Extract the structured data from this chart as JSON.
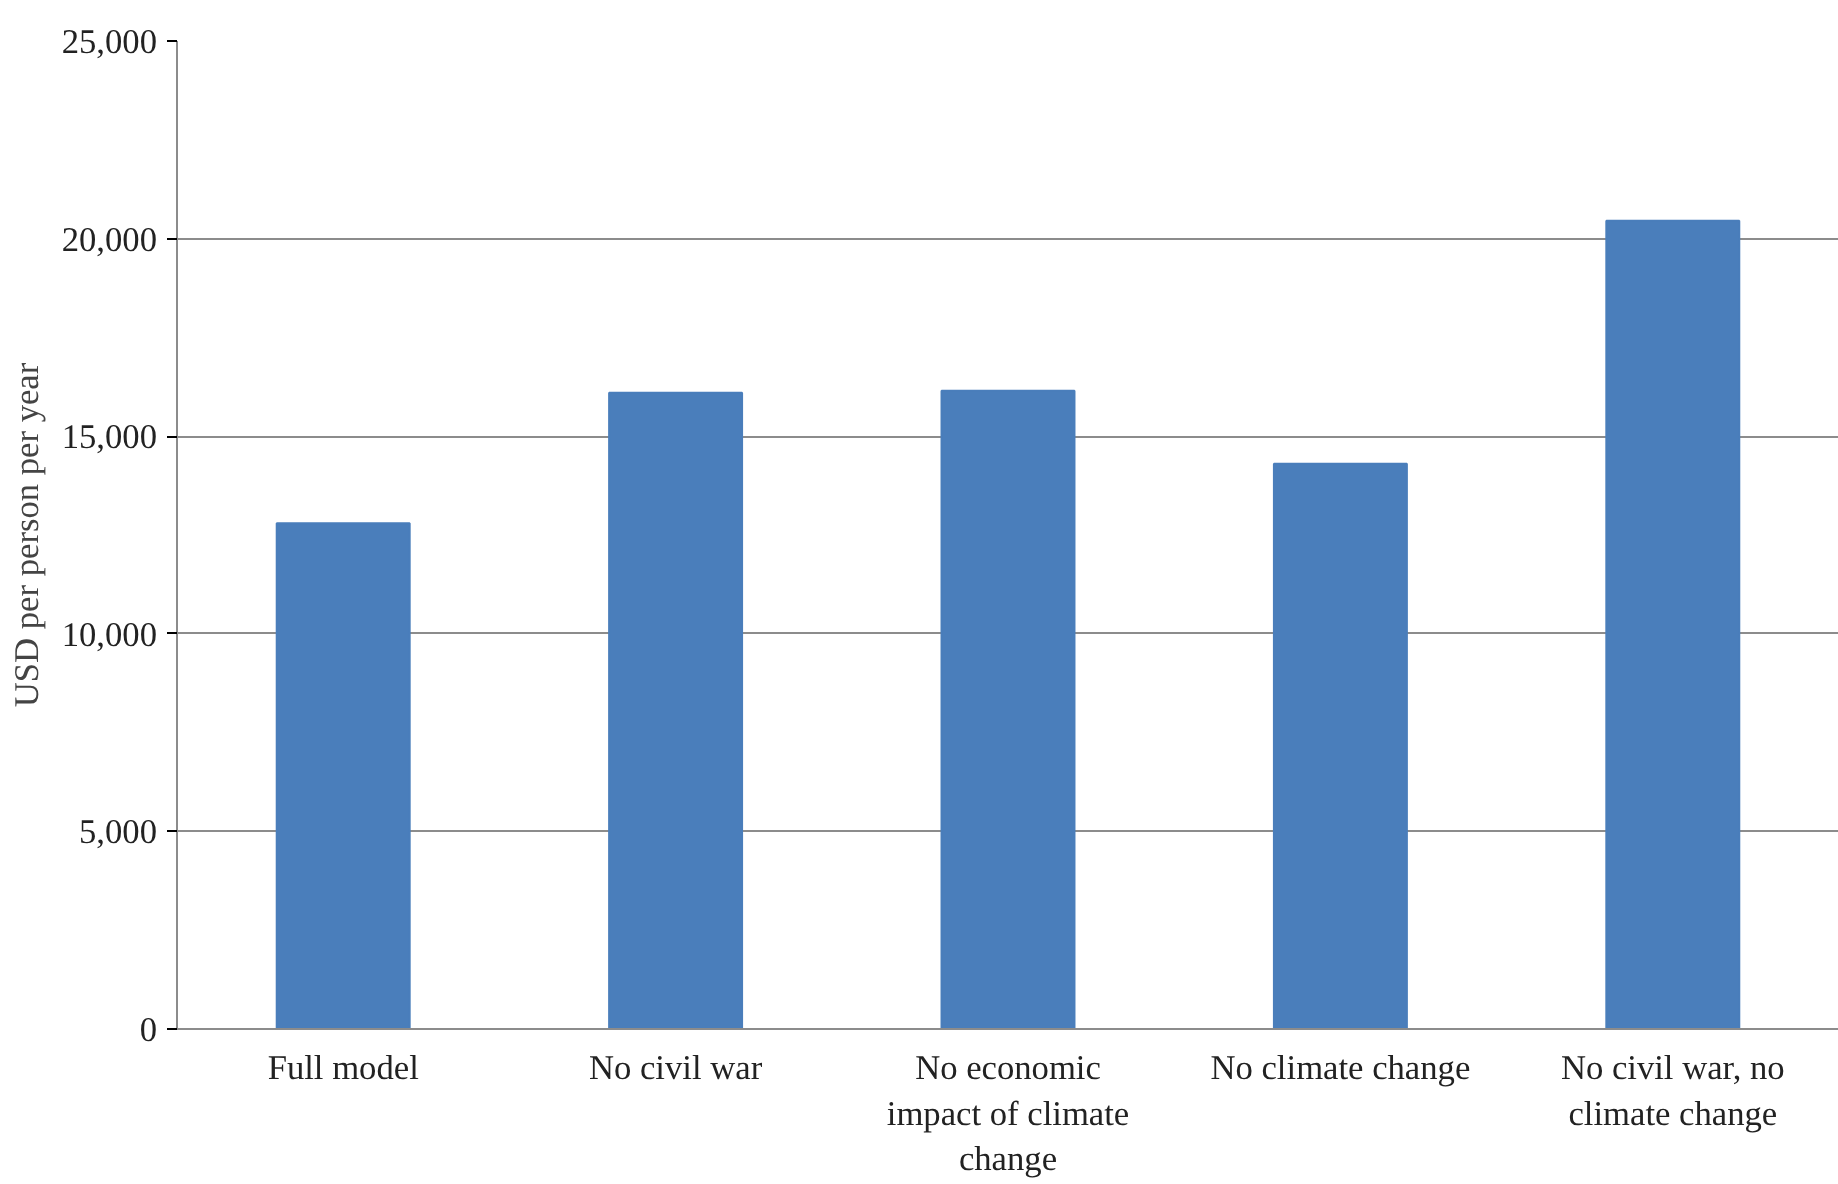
{
  "chart_data": {
    "type": "bar",
    "ylabel": "USD per person per year",
    "categories": [
      "Full model",
      "No civil war",
      "No economic impact of climate change",
      "No climate change",
      "No civil war, no climate change"
    ],
    "values": [
      12800,
      16100,
      16150,
      14300,
      20450
    ],
    "color": "#4a7ebb",
    "ylim": [
      0,
      25000
    ],
    "yticks": [
      {
        "value": 0,
        "label": "0"
      },
      {
        "value": 5000,
        "label": "5,000"
      },
      {
        "value": 10000,
        "label": "10,000"
      },
      {
        "value": 15000,
        "label": "15,000"
      },
      {
        "value": 20000,
        "label": "20,000"
      },
      {
        "value": 25000,
        "label": "25,000"
      }
    ],
    "grid": "y"
  }
}
